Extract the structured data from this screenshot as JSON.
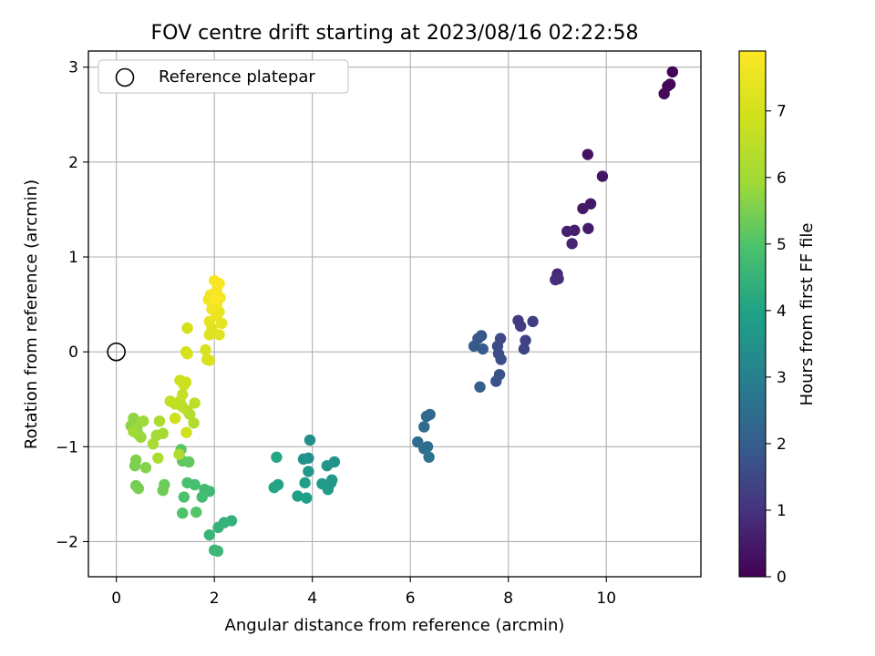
{
  "chart_data": {
    "type": "scatter",
    "title": "FOV centre drift starting at 2023/08/16 02:22:58",
    "xlabel": "Angular distance from reference (arcmin)",
    "ylabel": "Rotation from reference (arcmin)",
    "xlim": [
      -0.57,
      11.93
    ],
    "ylim": [
      -2.37,
      3.17
    ],
    "xticks": [
      0,
      2,
      4,
      6,
      8,
      10
    ],
    "yticks": [
      -2,
      -1,
      0,
      1,
      2,
      3
    ],
    "grid": true,
    "legend": {
      "placement": "upper-left",
      "entries": [
        "Reference platepar"
      ]
    },
    "reference_point": {
      "x": 0,
      "y": 0
    },
    "colorbar": {
      "label": "Hours from first FF file",
      "colormap": "viridis",
      "range": [
        0,
        7.9
      ],
      "ticks": [
        0,
        1,
        2,
        3,
        4,
        5,
        6,
        7
      ]
    },
    "points": [
      [
        11.35,
        2.95,
        0.05
      ],
      [
        11.25,
        2.8,
        0.1
      ],
      [
        11.3,
        2.82,
        0.12
      ],
      [
        11.18,
        2.72,
        0.15
      ],
      [
        9.62,
        2.08,
        0.35
      ],
      [
        9.92,
        1.85,
        0.4
      ],
      [
        9.68,
        1.56,
        0.45
      ],
      [
        9.52,
        1.51,
        0.5
      ],
      [
        9.63,
        1.3,
        0.55
      ],
      [
        9.35,
        1.28,
        0.6
      ],
      [
        9.2,
        1.27,
        0.65
      ],
      [
        9.3,
        1.14,
        0.7
      ],
      [
        9.0,
        0.82,
        0.8
      ],
      [
        8.96,
        0.76,
        0.85
      ],
      [
        9.02,
        0.77,
        0.9
      ],
      [
        8.2,
        0.33,
        1.2
      ],
      [
        8.25,
        0.27,
        1.25
      ],
      [
        8.5,
        0.32,
        1.3
      ],
      [
        8.35,
        0.12,
        1.35
      ],
      [
        8.32,
        0.03,
        1.4
      ],
      [
        7.84,
        0.14,
        1.5
      ],
      [
        7.78,
        0.06,
        1.55
      ],
      [
        7.8,
        -0.02,
        1.6
      ],
      [
        7.85,
        -0.08,
        1.65
      ],
      [
        7.82,
        -0.24,
        1.7
      ],
      [
        7.75,
        -0.31,
        1.75
      ],
      [
        7.45,
        0.17,
        1.8
      ],
      [
        7.38,
        0.14,
        1.85
      ],
      [
        7.3,
        0.06,
        1.9
      ],
      [
        7.48,
        0.03,
        1.95
      ],
      [
        7.42,
        -0.37,
        2.0
      ],
      [
        6.4,
        -0.66,
        2.3
      ],
      [
        6.33,
        -0.68,
        2.35
      ],
      [
        6.28,
        -0.79,
        2.4
      ],
      [
        6.15,
        -0.95,
        2.45
      ],
      [
        6.35,
        -1.0,
        2.5
      ],
      [
        6.28,
        -1.02,
        2.55
      ],
      [
        6.38,
        -1.11,
        2.6
      ],
      [
        3.95,
        -0.93,
        3.4
      ],
      [
        3.92,
        -1.12,
        3.45
      ],
      [
        3.82,
        -1.13,
        3.5
      ],
      [
        4.45,
        -1.16,
        3.55
      ],
      [
        4.3,
        -1.2,
        3.6
      ],
      [
        3.92,
        -1.26,
        3.65
      ],
      [
        4.4,
        -1.35,
        3.7
      ],
      [
        4.2,
        -1.39,
        3.75
      ],
      [
        4.32,
        -1.45,
        3.8
      ],
      [
        3.85,
        -1.38,
        3.85
      ],
      [
        3.7,
        -1.52,
        3.9
      ],
      [
        3.88,
        -1.54,
        3.95
      ],
      [
        3.3,
        -1.4,
        4.0
      ],
      [
        3.22,
        -1.43,
        4.05
      ],
      [
        3.27,
        -1.11,
        4.1
      ],
      [
        4.38,
        -1.38,
        3.72
      ],
      [
        2.35,
        -1.78,
        4.4
      ],
      [
        2.2,
        -1.8,
        4.45
      ],
      [
        2.08,
        -1.85,
        4.5
      ],
      [
        1.9,
        -1.93,
        4.55
      ],
      [
        2.0,
        -2.09,
        4.6
      ],
      [
        2.07,
        -2.1,
        4.65
      ],
      [
        1.9,
        -1.47,
        4.7
      ],
      [
        1.8,
        -1.45,
        4.75
      ],
      [
        1.75,
        -1.53,
        4.8
      ],
      [
        1.6,
        -1.4,
        4.85
      ],
      [
        1.45,
        -1.38,
        4.9
      ],
      [
        1.38,
        -1.53,
        4.95
      ],
      [
        1.35,
        -1.7,
        5.0
      ],
      [
        1.63,
        -1.69,
        5.05
      ],
      [
        1.32,
        -1.03,
        5.1
      ],
      [
        1.35,
        -1.15,
        5.15
      ],
      [
        1.48,
        -1.16,
        5.2
      ],
      [
        0.98,
        -1.4,
        5.3
      ],
      [
        0.95,
        -1.46,
        5.35
      ],
      [
        0.4,
        -1.41,
        5.4
      ],
      [
        0.45,
        -1.44,
        5.45
      ],
      [
        0.38,
        -1.2,
        5.5
      ],
      [
        0.4,
        -1.14,
        5.55
      ],
      [
        0.6,
        -1.22,
        5.6
      ],
      [
        0.45,
        -0.87,
        5.65
      ],
      [
        0.3,
        -0.78,
        5.7
      ],
      [
        0.35,
        -0.7,
        5.75
      ],
      [
        0.42,
        -0.8,
        5.8
      ],
      [
        0.5,
        -0.9,
        5.85
      ],
      [
        0.55,
        -0.73,
        5.9
      ],
      [
        0.35,
        -0.84,
        5.95
      ],
      [
        0.82,
        -0.88,
        6.0
      ],
      [
        0.95,
        -0.86,
        6.05
      ],
      [
        0.75,
        -0.97,
        6.1
      ],
      [
        0.85,
        -1.12,
        6.15
      ],
      [
        0.88,
        -0.73,
        6.2
      ],
      [
        1.28,
        -1.08,
        6.25
      ],
      [
        1.58,
        -0.75,
        6.3
      ],
      [
        1.5,
        -0.66,
        6.35
      ],
      [
        1.45,
        -0.62,
        6.4
      ],
      [
        1.35,
        -0.58,
        6.45
      ],
      [
        1.6,
        -0.54,
        6.5
      ],
      [
        1.3,
        -0.52,
        6.55
      ],
      [
        1.2,
        -0.55,
        6.6
      ],
      [
        1.1,
        -0.52,
        6.65
      ],
      [
        1.35,
        -0.45,
        6.7
      ],
      [
        1.38,
        -0.35,
        6.75
      ],
      [
        1.3,
        -0.3,
        6.8
      ],
      [
        1.42,
        -0.32,
        6.85
      ],
      [
        1.2,
        -0.7,
        6.9
      ],
      [
        1.43,
        -0.85,
        6.92
      ],
      [
        1.45,
        0.25,
        6.95
      ],
      [
        1.42,
        0.0,
        7.0
      ],
      [
        1.45,
        -0.02,
        7.02
      ],
      [
        1.82,
        0.02,
        7.05
      ],
      [
        1.85,
        -0.08,
        7.1
      ],
      [
        1.9,
        -0.09,
        7.12
      ],
      [
        1.9,
        0.18,
        7.2
      ],
      [
        1.95,
        0.25,
        7.25
      ],
      [
        2.1,
        0.18,
        7.3
      ],
      [
        2.15,
        0.3,
        7.35
      ],
      [
        1.9,
        0.32,
        7.4
      ],
      [
        2.05,
        0.38,
        7.45
      ],
      [
        2.1,
        0.42,
        7.5
      ],
      [
        1.95,
        0.45,
        7.55
      ],
      [
        2.05,
        0.5,
        7.6
      ],
      [
        1.88,
        0.55,
        7.62
      ],
      [
        1.92,
        0.6,
        7.65
      ],
      [
        2.12,
        0.57,
        7.7
      ],
      [
        2.05,
        0.65,
        7.72
      ],
      [
        2.0,
        0.75,
        7.75
      ],
      [
        2.1,
        0.72,
        7.8
      ],
      [
        2.02,
        0.55,
        7.85
      ]
    ]
  }
}
